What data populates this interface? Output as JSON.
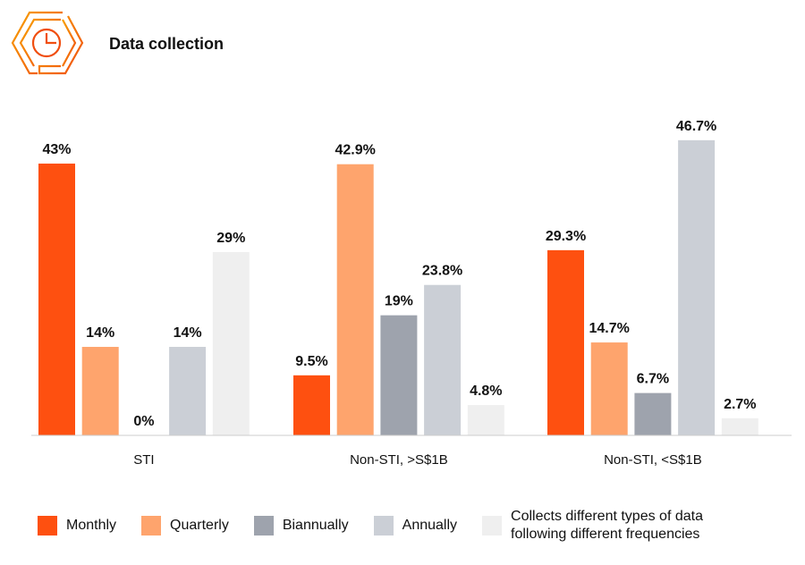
{
  "title": "Data collection",
  "logo": {
    "icon": "hexagon-pie-chart-icon",
    "color": "#F57C00"
  },
  "chart_data": {
    "type": "bar",
    "title": "Data collection",
    "categories": [
      "STI",
      "Non-STI, >S$1B",
      "Non-STI, <S$1B"
    ],
    "series": [
      {
        "name": "Monthly",
        "color": "#FE5010",
        "values": [
          43,
          9.5,
          29.3
        ],
        "labels": [
          "43%",
          "9.5%",
          "29.3%"
        ]
      },
      {
        "name": "Quarterly",
        "color": "#FEA46D",
        "values": [
          14,
          42.9,
          14.7
        ],
        "labels": [
          "14%",
          "42.9%",
          "14.7%"
        ]
      },
      {
        "name": "Biannually",
        "color": "#9EA3AD",
        "values": [
          0,
          19,
          6.7
        ],
        "labels": [
          "0%",
          "19%",
          "6.7%"
        ]
      },
      {
        "name": "Annually",
        "color": "#CBCFD6",
        "values": [
          14,
          23.8,
          46.7
        ],
        "labels": [
          "14%",
          "23.8%",
          "46.7%"
        ]
      },
      {
        "name": "Collects different types of data following different  frequencies",
        "legend_lines": [
          "Collects different types of data",
          "following different  frequencies"
        ],
        "color": "#EFEFEF",
        "values": [
          29,
          4.8,
          2.7
        ],
        "labels": [
          "29%",
          "4.8%",
          "2.7%"
        ]
      }
    ],
    "ylim": [
      0,
      50
    ],
    "grid": false,
    "legend": "bottom"
  }
}
